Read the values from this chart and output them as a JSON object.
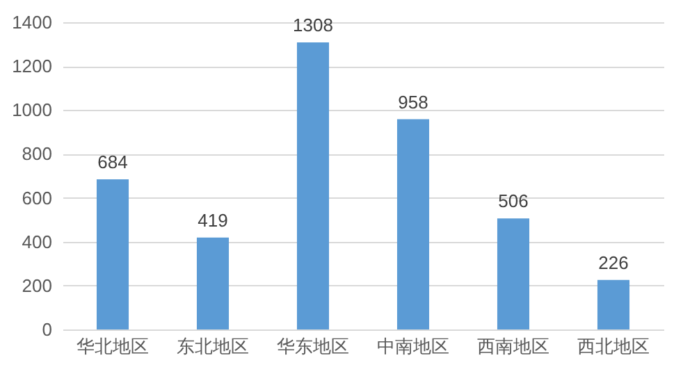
{
  "chart_data": {
    "type": "bar",
    "categories": [
      "华北地区",
      "东北地区",
      "华东地区",
      "中南地区",
      "西南地区",
      "西北地区"
    ],
    "values": [
      684,
      419,
      1308,
      958,
      506,
      226
    ],
    "color": "#5b9bd5",
    "ylim": [
      0,
      1400
    ],
    "yticks": [
      0,
      200,
      400,
      600,
      800,
      1000,
      1200,
      1400
    ],
    "grid": "y",
    "data_labels": true
  }
}
